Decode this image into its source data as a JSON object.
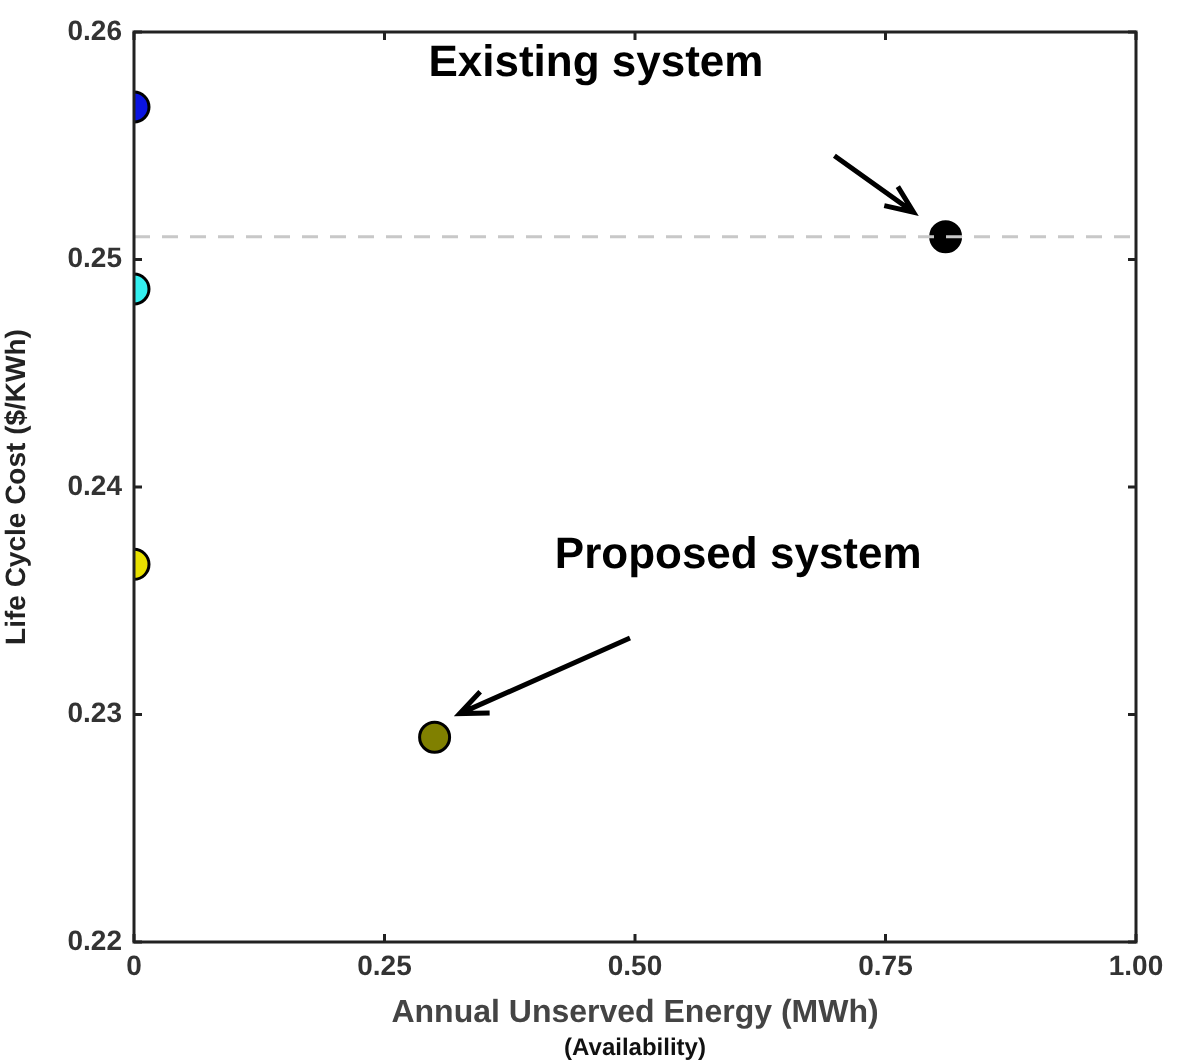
{
  "chart_data": {
    "type": "scatter",
    "ylabel": "Life Cycle Cost ($/KWh)",
    "xlabel": "Annual Unserved Energy (MWh)",
    "series": [
      {
        "x": [
          0,
          0,
          0,
          0.3,
          0.81
        ],
        "values": [
          0.2567,
          0.2487,
          0.2366,
          0.229,
          0.251
        ],
        "colors": [
          "#0a14e0",
          "#33f0f0",
          "#e8e000",
          "#808000",
          "#000000"
        ]
      }
    ],
    "xlim": [
      0,
      1
    ],
    "xticks": [
      0,
      0.25,
      {
        "value": 0.5,
        "label": "0.50"
      },
      0.75,
      {
        "value": 1,
        "label": "1.00"
      }
    ],
    "ylim": [
      0.22,
      0.26
    ],
    "yticks": [
      0.22,
      0.23,
      0.24,
      0.25,
      0.26
    ],
    "ref_lines": [
      {
        "axis": "y",
        "value": 0.251,
        "color": "#c8c8c8",
        "line_style": "dashed"
      }
    ],
    "annotations": [
      "Existing system",
      "Proposed system",
      "(Availability)"
    ],
    "marker": "circle",
    "grid": false,
    "legend": false
  }
}
